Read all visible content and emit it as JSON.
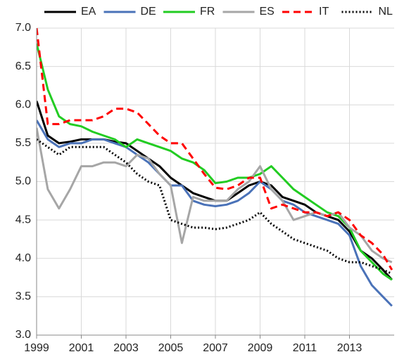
{
  "chart_data": {
    "type": "line",
    "x": [
      1999,
      1999.5,
      2000,
      2000.5,
      2001,
      2001.5,
      2002,
      2002.5,
      2003,
      2003.5,
      2004,
      2004.5,
      2005,
      2005.5,
      2006,
      2006.5,
      2007,
      2007.5,
      2008,
      2008.5,
      2009,
      2009.5,
      2010,
      2010.5,
      2011,
      2011.5,
      2012,
      2012.5,
      2013,
      2013.5,
      2014,
      2014.5,
      2014.9
    ],
    "series": [
      {
        "name": "EA",
        "color": "#000000",
        "dash": "solid",
        "values": [
          6.05,
          5.6,
          5.5,
          5.52,
          5.55,
          5.55,
          5.55,
          5.52,
          5.5,
          5.4,
          5.3,
          5.2,
          5.05,
          4.95,
          4.85,
          4.8,
          4.75,
          4.75,
          4.85,
          4.95,
          5.0,
          4.95,
          4.8,
          4.75,
          4.7,
          4.6,
          4.55,
          4.5,
          4.35,
          4.1,
          4.0,
          3.85,
          3.72
        ]
      },
      {
        "name": "DE",
        "color": "#4a72b8",
        "dash": "solid",
        "values": [
          5.8,
          5.55,
          5.45,
          5.5,
          5.5,
          5.55,
          5.55,
          5.5,
          5.45,
          5.35,
          5.25,
          5.1,
          4.95,
          4.95,
          4.75,
          4.7,
          4.68,
          4.7,
          4.75,
          4.85,
          5.0,
          4.9,
          4.75,
          4.7,
          4.6,
          4.55,
          4.5,
          4.45,
          4.3,
          3.9,
          3.65,
          3.5,
          3.38
        ]
      },
      {
        "name": "FR",
        "color": "#22cc22",
        "dash": "solid",
        "values": [
          6.8,
          6.2,
          5.85,
          5.75,
          5.72,
          5.65,
          5.6,
          5.55,
          5.45,
          5.55,
          5.5,
          5.45,
          5.4,
          5.3,
          5.25,
          5.15,
          4.98,
          5.0,
          5.05,
          5.05,
          5.1,
          5.2,
          5.05,
          4.9,
          4.8,
          4.7,
          4.6,
          4.55,
          4.4,
          4.1,
          3.95,
          3.8,
          3.72
        ]
      },
      {
        "name": "ES",
        "color": "#a6a6a6",
        "dash": "solid",
        "values": [
          5.7,
          4.9,
          4.65,
          4.9,
          5.2,
          5.2,
          5.25,
          5.25,
          5.2,
          5.35,
          5.3,
          5.1,
          4.95,
          4.2,
          4.8,
          4.75,
          4.75,
          4.75,
          4.9,
          5.0,
          5.2,
          4.9,
          4.75,
          4.5,
          4.55,
          4.6,
          4.55,
          4.6,
          4.4,
          4.3,
          4.1,
          4.0,
          3.95
        ]
      },
      {
        "name": "IT",
        "color": "#ff0000",
        "dash": "dashed",
        "values": [
          7.0,
          5.75,
          5.75,
          5.8,
          5.8,
          5.8,
          5.85,
          5.95,
          5.95,
          5.9,
          5.75,
          5.6,
          5.5,
          5.5,
          5.3,
          5.1,
          4.92,
          4.9,
          4.95,
          5.05,
          5.05,
          4.65,
          4.7,
          4.65,
          4.6,
          4.6,
          4.55,
          4.6,
          4.5,
          4.3,
          4.2,
          4.05,
          3.85
        ]
      },
      {
        "name": "NL",
        "color": "#000000",
        "dash": "dotted",
        "values": [
          5.55,
          5.45,
          5.35,
          5.45,
          5.45,
          5.45,
          5.45,
          5.35,
          5.25,
          5.1,
          5.0,
          4.95,
          4.5,
          4.45,
          4.4,
          4.4,
          4.38,
          4.4,
          4.45,
          4.5,
          4.6,
          4.45,
          4.35,
          4.25,
          4.2,
          4.15,
          4.1,
          4.0,
          3.95,
          3.95,
          3.9,
          3.85,
          3.8
        ]
      }
    ],
    "xlim": [
      1999,
      2015
    ],
    "xticks": [
      1999,
      2001,
      2003,
      2005,
      2007,
      2009,
      2011,
      2013
    ],
    "ylim": [
      3,
      7
    ],
    "yticks": [
      {
        "value": 3,
        "label": "3.0"
      },
      {
        "value": 3.5,
        "label": "3.5"
      },
      {
        "value": 4,
        "label": "4.0"
      },
      {
        "value": 4.5,
        "label": "4.5"
      },
      {
        "value": 5,
        "label": "5.0"
      },
      {
        "value": 5.5,
        "label": "5.5"
      },
      {
        "value": 6,
        "label": "6.0"
      },
      {
        "value": 6.5,
        "label": "6.5"
      },
      {
        "value": 7,
        "label": "7.0"
      }
    ],
    "grid": true,
    "legend": "top"
  }
}
